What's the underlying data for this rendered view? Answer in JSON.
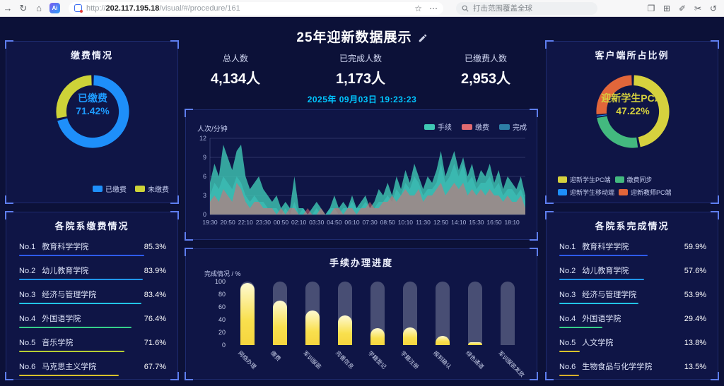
{
  "browser": {
    "url_scheme": "http://",
    "url_host": "202.117.195.18",
    "url_path": "/visual/#/procedure/161",
    "search_text": "打击范围覆盖全球",
    "extension_label": "Ai"
  },
  "header": {
    "title": "25年迎新数据展示",
    "stats": [
      {
        "label": "总人数",
        "value": "4,134人"
      },
      {
        "label": "已完成人数",
        "value": "1,173人"
      },
      {
        "label": "已缴费人数",
        "value": "2,953人"
      }
    ],
    "datetime": "2025年 09月03日 19:23:23"
  },
  "panels": {
    "payment": {
      "title": "缴费情况"
    },
    "client": {
      "title": "客户端所占比例"
    },
    "dept_payment": {
      "title": "各院系缴费情况",
      "rows": [
        {
          "rank": "No.1",
          "name": "教育科学学院",
          "value": 85.3,
          "display": "85.3%",
          "color": "#2e5bff"
        },
        {
          "rank": "No.2",
          "name": "幼儿教育学院",
          "value": 83.9,
          "display": "83.9%",
          "color": "#2196f3"
        },
        {
          "rank": "No.3",
          "name": "经济与管理学院",
          "value": 83.4,
          "display": "83.4%",
          "color": "#22c4e6"
        },
        {
          "rank": "No.4",
          "name": "外国语学院",
          "value": 76.4,
          "display": "76.4%",
          "color": "#35d08a"
        },
        {
          "rank": "No.5",
          "name": "音乐学院",
          "value": 71.6,
          "display": "71.6%",
          "color": "#b7cf33"
        },
        {
          "rank": "No.6",
          "name": "马克思主义学院",
          "value": 67.7,
          "display": "67.7%",
          "color": "#d8c22b"
        }
      ]
    },
    "dept_completion": {
      "title": "各院系完成情况",
      "rows": [
        {
          "rank": "No.1",
          "name": "教育科学学院",
          "value": 59.9,
          "display": "59.9%",
          "color": "#2e5bff"
        },
        {
          "rank": "No.2",
          "name": "幼儿教育学院",
          "value": 57.6,
          "display": "57.6%",
          "color": "#2196f3"
        },
        {
          "rank": "No.3",
          "name": "经济与管理学院",
          "value": 53.9,
          "display": "53.9%",
          "color": "#22c4e6"
        },
        {
          "rank": "No.4",
          "name": "外国语学院",
          "value": 29.4,
          "display": "29.4%",
          "color": "#35d08a"
        },
        {
          "rank": "No.5",
          "name": "人文学院",
          "value": 13.8,
          "display": "13.8%",
          "color": "#d8c22b"
        },
        {
          "rank": "No.6",
          "name": "生物食品与化学学院",
          "value": 13.5,
          "display": "13.5%",
          "color": "#d8b02b"
        }
      ]
    },
    "progress": {
      "title": "手续办理进度"
    }
  },
  "chart_data": [
    {
      "id": "payment_donut",
      "type": "pie",
      "title": "缴费情况",
      "center_label": "已缴费",
      "center_value": "71.42%",
      "center_color": "#1e9bff",
      "legend_position": "bottom-right",
      "series": [
        {
          "name": "已缴费",
          "value": 71.42,
          "color": "#1e8ffa"
        },
        {
          "name": "未缴费",
          "value": 28.58,
          "color": "#cdd338"
        }
      ]
    },
    {
      "id": "client_donut",
      "type": "pie",
      "title": "客户端所占比例",
      "center_label": "迎新学生PC端",
      "center_value": "47.22%",
      "center_color": "#d6d13e",
      "legend_position": "bottom-left",
      "series": [
        {
          "name": "迎新学生PC端",
          "value": 47.22,
          "color": "#d6d13e"
        },
        {
          "name": "缴费同步",
          "value": 25.5,
          "color": "#43b97f"
        },
        {
          "name": "迎新学生移动端",
          "value": 0.5,
          "color": "#1e8ffa"
        },
        {
          "name": "迎新教师PC端",
          "value": 26.78,
          "color": "#e2663a"
        }
      ]
    },
    {
      "id": "flow_area",
      "type": "area",
      "title": "",
      "ylabel": "人次/分钟",
      "ylim": [
        0,
        12
      ],
      "yticks": [
        0,
        3,
        6,
        9,
        12
      ],
      "legend_position": "top-right",
      "x_tick_labels": [
        "19:30",
        "20:50",
        "22:10",
        "23:30",
        "00:50",
        "02:10",
        "03:30",
        "04:50",
        "06:10",
        "07:30",
        "08:50",
        "10:10",
        "11:30",
        "12:50",
        "14:10",
        "15:30",
        "16:50",
        "18:10"
      ],
      "x_tick_every": 4,
      "series": [
        {
          "name": "手续",
          "color": "#3fc8b4",
          "values": [
            5,
            8,
            6,
            11,
            9,
            7,
            10,
            11,
            6,
            4,
            5,
            6,
            4,
            3,
            2,
            3,
            1,
            2,
            1,
            6,
            1,
            1,
            0,
            1,
            2,
            1,
            0,
            1,
            3,
            1,
            2,
            1,
            3,
            1,
            2,
            3,
            1,
            2,
            4,
            3,
            5,
            3,
            6,
            4,
            7,
            5,
            8,
            6,
            4,
            6,
            5,
            7,
            10,
            6,
            8,
            10,
            7,
            9,
            6,
            8,
            5,
            7,
            6,
            8,
            5,
            7,
            4,
            6,
            5,
            4,
            6,
            3
          ]
        },
        {
          "name": "缴费",
          "color": "#e06a70",
          "values": [
            2,
            3,
            2,
            4,
            3,
            2,
            5,
            4,
            2,
            1,
            2,
            2,
            1,
            1,
            1,
            0,
            1,
            0,
            1,
            1,
            0,
            0,
            1,
            0,
            0,
            1,
            0,
            0,
            1,
            1,
            0,
            1,
            1,
            0,
            1,
            1,
            2,
            1,
            1,
            2,
            2,
            3,
            2,
            3,
            4,
            3,
            3,
            4,
            2,
            3,
            3,
            4,
            5,
            3,
            4,
            5,
            4,
            5,
            3,
            4,
            3,
            4,
            3,
            4,
            3,
            3,
            2,
            3,
            2,
            2,
            3,
            1
          ]
        },
        {
          "name": "完成",
          "color": "#2d7ea6",
          "values": [
            3,
            5,
            4,
            6,
            5,
            4,
            6,
            5,
            3,
            2,
            3,
            2,
            2,
            1,
            1,
            1,
            0,
            1,
            0,
            2,
            0,
            1,
            0,
            0,
            1,
            0,
            0,
            1,
            1,
            0,
            1,
            1,
            2,
            1,
            1,
            2,
            1,
            1,
            2,
            2,
            3,
            2,
            4,
            3,
            5,
            4,
            6,
            5,
            3,
            4,
            4,
            5,
            8,
            5,
            6,
            8,
            6,
            8,
            5,
            6,
            4,
            5,
            5,
            6,
            4,
            5,
            3,
            4,
            4,
            3,
            4,
            2
          ]
        }
      ]
    },
    {
      "id": "progress_bar",
      "type": "bar",
      "title": "手续办理进度",
      "xlabel": "",
      "ylabel": "完成情况 / %",
      "ylim": [
        0,
        100
      ],
      "yticks": [
        0,
        20,
        40,
        60,
        80,
        100
      ],
      "categories": [
        "网络办理",
        "缴费",
        "军训服装",
        "完善信息",
        "学籍登记",
        "学籍注册",
        "报到确认",
        "绿色通道",
        "军训服装发放"
      ],
      "values": [
        98,
        70,
        54,
        47,
        27,
        28,
        14,
        5,
        0
      ],
      "bar_color_top": "#fefad2",
      "bar_color_bottom": "#f6d53e",
      "track_color": "#484e74"
    }
  ]
}
